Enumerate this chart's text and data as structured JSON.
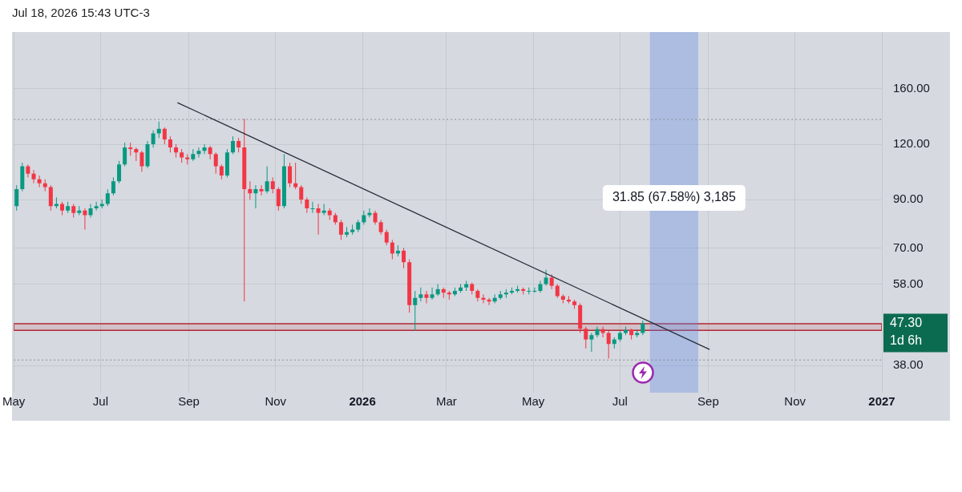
{
  "chart_data": {
    "type": "candlestick",
    "title": "Jul 18, 2026 15:43 UTC-3",
    "x": [
      "2025-05-03",
      "2025-05-07",
      "2025-05-11",
      "2025-05-15",
      "2025-05-19",
      "2025-05-23",
      "2025-05-27",
      "2025-05-31",
      "2025-06-04",
      "2025-06-08",
      "2025-06-12",
      "2025-06-16",
      "2025-06-20",
      "2025-06-24",
      "2025-06-28",
      "2025-07-02",
      "2025-07-06",
      "2025-07-10",
      "2025-07-14",
      "2025-07-18",
      "2025-07-22",
      "2025-07-26",
      "2025-07-30",
      "2025-08-03",
      "2025-08-07",
      "2025-08-11",
      "2025-08-15",
      "2025-08-19",
      "2025-08-23",
      "2025-08-27",
      "2025-08-31",
      "2025-09-04",
      "2025-09-08",
      "2025-09-12",
      "2025-09-16",
      "2025-09-20",
      "2025-09-24",
      "2025-09-28",
      "2025-10-02",
      "2025-10-06",
      "2025-10-10",
      "2025-10-14",
      "2025-10-18",
      "2025-10-22",
      "2025-10-26",
      "2025-10-30",
      "2025-11-03",
      "2025-11-07",
      "2025-11-11",
      "2025-11-15",
      "2025-11-19",
      "2025-11-23",
      "2025-11-27",
      "2025-12-01",
      "2025-12-05",
      "2025-12-09",
      "2025-12-13",
      "2025-12-17",
      "2025-12-21",
      "2025-12-25",
      "2025-12-29",
      "2026-01-02",
      "2026-01-06",
      "2026-01-10",
      "2026-01-14",
      "2026-01-18",
      "2026-01-22",
      "2026-01-26",
      "2026-01-30",
      "2026-02-03",
      "2026-02-07",
      "2026-02-11",
      "2026-02-15",
      "2026-02-19",
      "2026-02-23",
      "2026-02-27",
      "2026-03-03",
      "2026-03-07",
      "2026-03-11",
      "2026-03-15",
      "2026-03-19",
      "2026-03-23",
      "2026-03-27",
      "2026-03-31",
      "2026-04-04",
      "2026-04-08",
      "2026-04-12",
      "2026-04-16",
      "2026-04-20",
      "2026-04-24",
      "2026-04-28",
      "2026-05-02",
      "2026-05-06",
      "2026-05-10",
      "2026-05-14",
      "2026-05-18",
      "2026-05-22",
      "2026-05-26",
      "2026-05-30",
      "2026-06-03",
      "2026-06-07",
      "2026-06-11",
      "2026-06-15",
      "2026-06-19",
      "2026-06-23",
      "2026-06-27",
      "2026-07-01",
      "2026-07-05",
      "2026-07-09",
      "2026-07-13",
      "2026-07-17"
    ],
    "ohlc": [
      [
        87,
        97,
        85,
        95
      ],
      [
        95,
        109,
        94,
        107
      ],
      [
        107,
        108,
        101,
        103
      ],
      [
        103,
        105,
        98,
        100
      ],
      [
        100,
        102,
        96,
        98
      ],
      [
        98,
        100,
        94,
        96
      ],
      [
        96,
        97,
        85,
        87
      ],
      [
        87,
        91,
        86,
        88
      ],
      [
        88,
        89,
        83,
        85
      ],
      [
        85,
        89,
        84,
        87
      ],
      [
        87,
        88,
        82,
        84
      ],
      [
        84,
        87,
        83,
        85
      ],
      [
        85,
        86,
        77,
        83
      ],
      [
        83,
        88,
        82,
        86
      ],
      [
        86,
        89,
        85,
        87
      ],
      [
        87,
        90,
        86,
        88
      ],
      [
        88,
        95,
        87,
        93
      ],
      [
        93,
        101,
        92,
        99
      ],
      [
        99,
        110,
        98,
        108
      ],
      [
        108,
        121,
        107,
        118
      ],
      [
        118,
        121,
        113,
        117
      ],
      [
        117,
        118,
        110,
        115
      ],
      [
        115,
        116,
        104,
        107
      ],
      [
        107,
        122,
        106,
        120
      ],
      [
        120,
        129,
        118,
        127
      ],
      [
        127,
        135,
        124,
        130
      ],
      [
        130,
        131,
        120,
        123
      ],
      [
        123,
        125,
        115,
        118
      ],
      [
        118,
        120,
        112,
        115
      ],
      [
        115,
        117,
        109,
        112
      ],
      [
        112,
        114,
        108,
        111
      ],
      [
        111,
        117,
        110,
        114
      ],
      [
        114,
        118,
        112,
        116
      ],
      [
        116,
        120,
        114,
        118
      ],
      [
        118,
        119,
        111,
        114
      ],
      [
        114,
        115,
        103,
        107
      ],
      [
        107,
        108,
        100,
        102
      ],
      [
        102,
        117,
        101,
        115
      ],
      [
        115,
        125,
        114,
        122
      ],
      [
        122,
        124,
        115,
        118
      ],
      [
        118,
        137,
        53,
        95
      ],
      [
        95,
        99,
        90,
        93
      ],
      [
        93,
        97,
        86,
        95
      ],
      [
        95,
        97,
        92,
        94
      ],
      [
        94,
        107,
        93,
        99
      ],
      [
        99,
        101,
        93,
        95
      ],
      [
        95,
        96,
        85,
        87
      ],
      [
        87,
        114,
        86,
        107
      ],
      [
        107,
        109,
        96,
        98
      ],
      [
        98,
        109,
        95,
        96
      ],
      [
        96,
        97,
        88,
        90
      ],
      [
        90,
        91,
        84,
        86
      ],
      [
        86,
        89,
        84,
        86
      ],
      [
        86,
        88,
        75,
        84
      ],
      [
        84,
        88,
        83,
        85
      ],
      [
        85,
        86,
        81,
        83
      ],
      [
        83,
        84,
        79,
        80
      ],
      [
        80,
        81,
        73,
        75
      ],
      [
        75,
        78,
        74,
        76
      ],
      [
        76,
        79,
        75,
        77
      ],
      [
        77,
        81,
        76,
        80
      ],
      [
        80,
        85,
        79,
        83
      ],
      [
        83,
        86,
        82,
        84
      ],
      [
        84,
        85,
        79,
        80
      ],
      [
        80,
        81,
        75,
        76
      ],
      [
        76,
        77,
        71,
        72
      ],
      [
        72,
        73,
        66,
        68
      ],
      [
        68,
        71,
        67,
        69
      ],
      [
        69,
        70,
        63,
        65
      ],
      [
        65,
        66,
        50,
        52
      ],
      [
        52,
        56,
        45.5,
        54
      ],
      [
        54,
        57,
        53,
        55
      ],
      [
        55,
        56,
        52.5,
        54
      ],
      [
        54,
        57,
        53.5,
        55
      ],
      [
        55,
        58,
        54.5,
        56.5
      ],
      [
        56.5,
        57,
        54,
        55.5
      ],
      [
        55.5,
        56,
        53.5,
        55
      ],
      [
        55,
        57,
        54.5,
        56
      ],
      [
        56,
        58,
        55.5,
        57
      ],
      [
        57,
        59,
        56,
        58
      ],
      [
        58,
        58.5,
        55,
        56
      ],
      [
        56,
        56.5,
        53,
        54
      ],
      [
        54,
        55,
        52.5,
        53.5
      ],
      [
        53.5,
        54,
        52,
        53
      ],
      [
        53,
        55,
        52.5,
        54
      ],
      [
        54,
        56,
        53.5,
        55
      ],
      [
        55,
        56.5,
        54,
        55.5
      ],
      [
        55.5,
        57,
        55,
        56
      ],
      [
        56,
        57.5,
        55.5,
        56.5
      ],
      [
        56.5,
        57,
        55,
        56
      ],
      [
        56,
        57,
        55,
        56
      ],
      [
        56,
        57,
        55.5,
        56
      ],
      [
        56,
        59,
        55.5,
        58
      ],
      [
        58,
        62.5,
        57.5,
        60
      ],
      [
        60,
        61,
        56.5,
        57.5
      ],
      [
        57.5,
        58,
        54,
        54.5
      ],
      [
        54.5,
        55,
        52.5,
        53.5
      ],
      [
        53.5,
        54.5,
        52.5,
        53
      ],
      [
        53,
        53.5,
        51,
        52
      ],
      [
        52,
        52.5,
        45,
        46
      ],
      [
        46,
        46.5,
        41.5,
        43.5
      ],
      [
        43.5,
        45,
        40.8,
        44.5
      ],
      [
        44.5,
        46.5,
        44,
        45.9
      ],
      [
        45.9,
        46.5,
        44,
        45
      ],
      [
        45,
        45.5,
        39.4,
        42.5
      ],
      [
        42.5,
        44,
        41.5,
        43.5
      ],
      [
        43.5,
        45.5,
        43,
        45
      ],
      [
        45,
        46.5,
        44.5,
        45.7
      ],
      [
        45.7,
        46,
        43.5,
        44.5
      ],
      [
        44.5,
        45.5,
        44,
        45
      ],
      [
        45,
        48,
        44.5,
        47.3
      ]
    ],
    "colors": [
      "#089981",
      "#089981",
      "#f23645",
      "#f23645",
      "#f23645",
      "#f23645",
      "#f23645",
      "#089981",
      "#f23645",
      "#089981",
      "#f23645",
      "#089981",
      "#f23645",
      "#089981",
      "#089981",
      "#089981",
      "#089981",
      "#089981",
      "#089981",
      "#089981",
      "#f23645",
      "#f23645",
      "#f23645",
      "#089981",
      "#089981",
      "#089981",
      "#f23645",
      "#f23645",
      "#f23645",
      "#f23645",
      "#f23645",
      "#089981",
      "#089981",
      "#089981",
      "#f23645",
      "#f23645",
      "#f23645",
      "#089981",
      "#089981",
      "#f23645",
      "#f23645",
      "#f23645",
      "#089981",
      "#f23645",
      "#089981",
      "#f23645",
      "#f23645",
      "#089981",
      "#f23645",
      "#f23645",
      "#f23645",
      "#f23645",
      "#089981",
      "#f23645",
      "#089981",
      "#f23645",
      "#f23645",
      "#f23645",
      "#089981",
      "#089981",
      "#089981",
      "#089981",
      "#089981",
      "#f23645",
      "#f23645",
      "#f23645",
      "#f23645",
      "#089981",
      "#f23645",
      "#f23645",
      "#089981",
      "#089981",
      "#f23645",
      "#089981",
      "#089981",
      "#f23645",
      "#f23645",
      "#089981",
      "#089981",
      "#089981",
      "#f23645",
      "#f23645",
      "#f23645",
      "#f23645",
      "#089981",
      "#089981",
      "#089981",
      "#089981",
      "#089981",
      "#f23645",
      "#089981",
      "#089981",
      "#089981",
      "#089981",
      "#f23645",
      "#f23645",
      "#f23645",
      "#f23645",
      "#f23645",
      "#f23645",
      "#f23645",
      "#089981",
      "#089981",
      "#f23645",
      "#f23645",
      "#089981",
      "#089981",
      "#089981",
      "#f23645",
      "#089981",
      "#089981"
    ],
    "series": [
      {
        "type": "line",
        "x": [
          "2025-08-24",
          "2026-09-02"
        ],
        "values": [
          149,
          41.3
        ],
        "color": "#2a2e39"
      }
    ],
    "xlim": [
      "2025-05-01",
      "2027-01-01"
    ],
    "xticks": [
      {
        "value": "2025-05-01",
        "label": "May"
      },
      {
        "value": "2025-07-01",
        "label": "Jul"
      },
      {
        "value": "2025-09-01",
        "label": "Sep"
      },
      {
        "value": "2025-11-01",
        "label": "Nov"
      },
      {
        "value": "2026-01-01",
        "label": "2026"
      },
      {
        "value": "2026-03-01",
        "label": "Mar"
      },
      {
        "value": "2026-05-01",
        "label": "May"
      },
      {
        "value": "2026-07-01",
        "label": "Jul"
      },
      {
        "value": "2026-09-01",
        "label": "Sep"
      },
      {
        "value": "2026-11-01",
        "label": "Nov"
      },
      {
        "value": "2027-01-01",
        "label": "2027"
      }
    ],
    "ylim": [
      33,
      215
    ],
    "log": "y",
    "yticks": [
      {
        "value": 38,
        "label": "38.00"
      },
      {
        "value": 58,
        "label": "58.00"
      },
      {
        "value": 70,
        "label": "70.00"
      },
      {
        "value": 90,
        "label": "90.00"
      },
      {
        "value": 120,
        "label": "120.00"
      },
      {
        "value": 160,
        "label": "160.00"
      }
    ],
    "grid": true,
    "legend": false,
    "ref_lines": [
      {
        "axis": "y",
        "value": 136.5,
        "color": "#8a8d96",
        "line_style": "dotted"
      },
      {
        "axis": "y",
        "value": 39.1,
        "color": "#8a8d96",
        "line_style": "dotted"
      }
    ],
    "bands": [
      {
        "axis": "y",
        "from": 45.6,
        "to": 47.2,
        "color": "#b22833"
      },
      {
        "axis": "x",
        "from": "2026-07-22",
        "to": "2026-08-25",
        "color": "#5b86e5",
        "label": "31.85 (67.58%) 3,185"
      }
    ],
    "annotations": [
      "47.30",
      "1d 6h"
    ]
  }
}
